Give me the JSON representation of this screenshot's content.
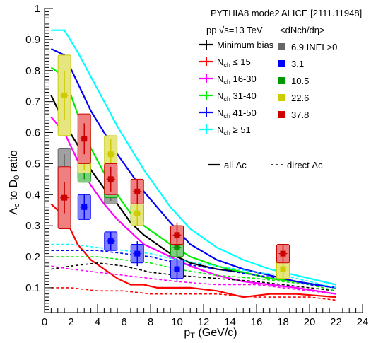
{
  "chart_data": {
    "type": "line",
    "xlabel": "p_T (GeV/c)",
    "ylabel": "Λc to D0 ratio",
    "xlim": [
      0,
      24
    ],
    "ylim": [
      0.02,
      1.0
    ],
    "x_ticks": [
      "0",
      "2",
      "4",
      "6",
      "8",
      "10",
      "12",
      "14",
      "16",
      "18",
      "20",
      "22",
      "24"
    ],
    "y_ticks": [
      "0.1",
      "0.2",
      "0.3",
      "0.4",
      "0.5",
      "0.6",
      "0.7",
      "0.8",
      "0.9",
      "1"
    ],
    "grid": false,
    "annotations": {
      "generator": "PYTHIA8 mode2",
      "system": "pp √s=13 TeV",
      "reference": "ALICE [2111.11948]",
      "multiplicity_header": "<dNch/dη>"
    },
    "legend_left": [
      {
        "name": "Minimum bias",
        "color": "#000000"
      },
      {
        "name": "Nch ≤ 15",
        "color": "#ff0000"
      },
      {
        "name": "Nch 16-30",
        "color": "#ff00ff"
      },
      {
        "name": "Nch 31-40",
        "color": "#00ee00"
      },
      {
        "name": "Nch 41-50",
        "color": "#0000ff"
      },
      {
        "name": "Nch ≥ 51",
        "color": "#00ffff"
      }
    ],
    "legend_right": [
      {
        "name": "6.9 INEL>0",
        "color": "#666666"
      },
      {
        "name": "3.1",
        "color": "#0000ff"
      },
      {
        "name": "10.5",
        "color": "#009900"
      },
      {
        "name": "22.6",
        "color": "#cccc00"
      },
      {
        "name": "37.8",
        "color": "#cc0000"
      }
    ],
    "line_styles": {
      "solid": "all Λc",
      "dashed": "direct Λc"
    },
    "series": [
      {
        "name": "Minimum bias",
        "style": "solid",
        "color": "#000000",
        "x": [
          0.5,
          1.5,
          2.5,
          3.5,
          4.5,
          5.5,
          6.5,
          7.5,
          8.5,
          9.5,
          11,
          13,
          15,
          17,
          19,
          22
        ],
        "y": [
          0.72,
          0.63,
          0.56,
          0.48,
          0.42,
          0.37,
          0.31,
          0.27,
          0.24,
          0.21,
          0.18,
          0.16,
          0.15,
          0.13,
          0.12,
          0.1
        ]
      },
      {
        "name": "Nch ≤ 15",
        "style": "solid",
        "color": "#ff0000",
        "x": [
          0.5,
          1.5,
          2.5,
          3.5,
          4.5,
          5.5,
          6.5,
          7.5,
          8.5,
          9.5,
          11,
          13,
          15,
          17,
          19,
          22
        ],
        "y": [
          0.37,
          0.33,
          0.24,
          0.19,
          0.16,
          0.13,
          0.11,
          0.11,
          0.1,
          0.1,
          0.1,
          0.09,
          0.07,
          0.08,
          0.08,
          0.07
        ]
      },
      {
        "name": "Nch 16-30",
        "style": "solid",
        "color": "#ff00ff",
        "x": [
          0.5,
          1.5,
          2.5,
          3.5,
          4.5,
          5.5,
          6.5,
          7.5,
          8.5,
          9.5,
          11,
          13,
          15,
          17,
          19,
          22
        ],
        "y": [
          0.65,
          0.6,
          0.51,
          0.43,
          0.37,
          0.32,
          0.28,
          0.24,
          0.22,
          0.2,
          0.17,
          0.14,
          0.12,
          0.11,
          0.1,
          0.08
        ]
      },
      {
        "name": "Nch 31-40",
        "style": "solid",
        "color": "#00ee00",
        "x": [
          0.5,
          1.5,
          2.5,
          3.5,
          4.5,
          5.5,
          6.5,
          7.5,
          8.5,
          9.5,
          11,
          13,
          15,
          17,
          19,
          22
        ],
        "y": [
          0.81,
          0.78,
          0.66,
          0.55,
          0.47,
          0.4,
          0.34,
          0.3,
          0.27,
          0.24,
          0.2,
          0.17,
          0.15,
          0.13,
          0.12,
          0.1
        ]
      },
      {
        "name": "Nch 41-50",
        "style": "solid",
        "color": "#0000ff",
        "x": [
          0.5,
          1.5,
          2.5,
          3.5,
          4.5,
          5.5,
          6.5,
          7.5,
          8.5,
          9.5,
          11,
          13,
          15,
          17,
          19,
          22
        ],
        "y": [
          0.87,
          0.85,
          0.76,
          0.67,
          0.6,
          0.53,
          0.47,
          0.41,
          0.36,
          0.31,
          0.24,
          0.19,
          0.16,
          0.14,
          0.12,
          0.1
        ]
      },
      {
        "name": "Nch ≥ 51",
        "style": "solid",
        "color": "#00ffff",
        "x": [
          0.5,
          1.5,
          2.5,
          3.5,
          4.5,
          5.5,
          6.5,
          7.5,
          8.5,
          9.5,
          11,
          13,
          15,
          17,
          19,
          22
        ],
        "y": [
          0.93,
          0.93,
          0.86,
          0.78,
          0.7,
          0.62,
          0.55,
          0.48,
          0.42,
          0.36,
          0.29,
          0.23,
          0.19,
          0.16,
          0.14,
          0.11
        ]
      },
      {
        "name": "Minimum bias direct",
        "style": "dashed",
        "color": "#000000",
        "x": [
          0.5,
          2,
          4,
          6,
          8,
          10,
          13,
          16,
          18,
          20,
          22
        ],
        "y": [
          0.16,
          0.17,
          0.18,
          0.17,
          0.15,
          0.14,
          0.13,
          0.12,
          0.11,
          0.1,
          0.09
        ]
      },
      {
        "name": "Nch ≤ 15 direct",
        "style": "dashed",
        "color": "#ff0000",
        "x": [
          0.5,
          2,
          4,
          6,
          8,
          10,
          13,
          16,
          18,
          20,
          22
        ],
        "y": [
          0.1,
          0.1,
          0.09,
          0.09,
          0.08,
          0.08,
          0.08,
          0.07,
          0.07,
          0.07,
          0.06
        ]
      },
      {
        "name": "Nch 16-30 direct",
        "style": "dashed",
        "color": "#ff00ff",
        "x": [
          0.5,
          2,
          4,
          6,
          8,
          10,
          13,
          16,
          18,
          20,
          22
        ],
        "y": [
          0.17,
          0.16,
          0.15,
          0.14,
          0.13,
          0.12,
          0.11,
          0.11,
          0.1,
          0.09,
          0.08
        ]
      },
      {
        "name": "Nch 31-40 direct",
        "style": "dashed",
        "color": "#00ee00",
        "x": [
          0.5,
          2,
          4,
          6,
          8,
          10,
          13,
          16,
          18,
          20,
          22
        ],
        "y": [
          0.2,
          0.2,
          0.2,
          0.19,
          0.18,
          0.16,
          0.14,
          0.13,
          0.12,
          0.11,
          0.09
        ]
      },
      {
        "name": "Nch 41-50 direct",
        "style": "dashed",
        "color": "#0000ff",
        "x": [
          0.5,
          2,
          4,
          6,
          8,
          10,
          13,
          16,
          18,
          20,
          22
        ],
        "y": [
          0.22,
          0.22,
          0.22,
          0.21,
          0.2,
          0.18,
          0.16,
          0.14,
          0.13,
          0.11,
          0.1
        ]
      },
      {
        "name": "Nch ≥ 51 direct",
        "style": "dashed",
        "color": "#00ffff",
        "x": [
          0.5,
          2,
          4,
          6,
          8,
          10,
          13,
          16,
          18,
          20,
          22
        ],
        "y": [
          0.24,
          0.24,
          0.23,
          0.22,
          0.21,
          0.19,
          0.17,
          0.15,
          0.14,
          0.12,
          0.1
        ]
      }
    ],
    "data_points": [
      {
        "name": "6.9 INEL>0",
        "color": "#666666",
        "fill": "#a0a0a0",
        "x": [
          1.5,
          3,
          5,
          7,
          10
        ],
        "y": [
          0.48,
          0.5,
          0.41,
          0.34,
          0.24
        ],
        "stat": [
          0.05,
          0.04,
          0.03,
          0.03,
          0.03
        ],
        "sys": [
          0.07,
          0.05,
          0.04,
          0.03,
          0.03
        ]
      },
      {
        "name": "3.1",
        "color": "#0000ff",
        "fill": "#8080ff",
        "x": [
          3,
          5,
          7,
          10
        ],
        "y": [
          0.36,
          0.25,
          0.21,
          0.16
        ],
        "stat": [
          0.04,
          0.03,
          0.04,
          0.04
        ],
        "sys": [
          0.04,
          0.03,
          0.03,
          0.03
        ]
      },
      {
        "name": "10.5",
        "color": "#009900",
        "fill": "#80cc80",
        "x": [
          1.5,
          3,
          5,
          7,
          10
        ],
        "y": [
          0.4,
          0.49,
          0.43,
          0.34,
          0.23
        ],
        "stat": [
          0.04,
          0.04,
          0.03,
          0.03,
          0.03
        ],
        "sys": [
          0.05,
          0.05,
          0.04,
          0.03,
          0.03
        ]
      },
      {
        "name": "22.6",
        "color": "#cccc00",
        "fill": "#e6e680",
        "x": [
          1.5,
          3,
          5,
          7,
          10,
          18
        ],
        "y": [
          0.72,
          0.54,
          0.53,
          0.34,
          0.27,
          0.16
        ],
        "stat": [
          0.08,
          0.06,
          0.05,
          0.04,
          0.03,
          0.03
        ],
        "sys": [
          0.13,
          0.07,
          0.06,
          0.04,
          0.03,
          0.03
        ]
      },
      {
        "name": "37.8",
        "color": "#cc0000",
        "fill": "#ee8080",
        "x": [
          1.5,
          3,
          5,
          7,
          10,
          18
        ],
        "y": [
          0.39,
          0.58,
          0.45,
          0.41,
          0.27,
          0.21
        ],
        "stat": [
          0.05,
          0.05,
          0.04,
          0.04,
          0.04,
          0.03
        ],
        "sys": [
          0.1,
          0.08,
          0.05,
          0.04,
          0.03,
          0.03
        ]
      }
    ]
  }
}
